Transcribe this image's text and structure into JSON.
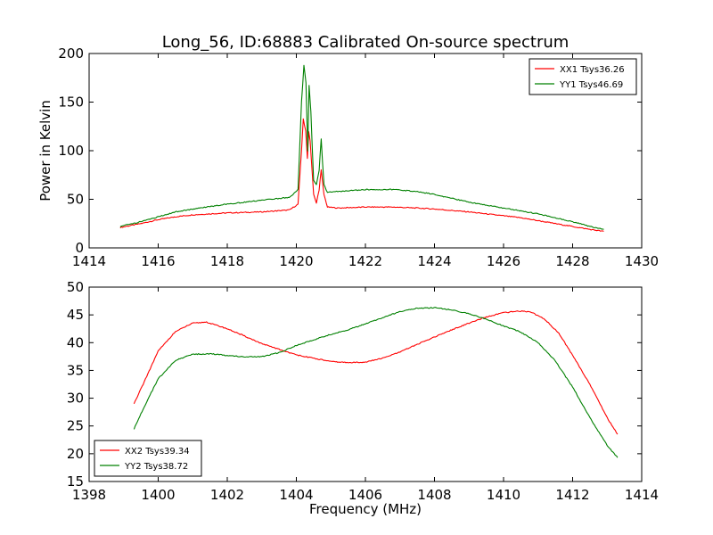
{
  "figure": {
    "title": "Long_56, ID:68883 Calibrated On-source spectrum"
  },
  "chart_data": [
    {
      "type": "line",
      "title": "Long_56, ID:68883 Calibrated On-source spectrum",
      "xlabel": "",
      "ylabel": "Power in Kelvin",
      "xlim": [
        1414,
        1430
      ],
      "ylim": [
        0,
        200
      ],
      "xticks": [
        1414,
        1416,
        1418,
        1420,
        1422,
        1424,
        1426,
        1428,
        1430
      ],
      "yticks": [
        0,
        50,
        100,
        150,
        200
      ],
      "grid": false,
      "legend_position": "top-right",
      "series": [
        {
          "name": "XX1 Tsys36.26",
          "color": "#ff0000",
          "x": [
            1414.9,
            1415.5,
            1416.0,
            1416.5,
            1417.0,
            1418.0,
            1419.0,
            1419.8,
            1420.05,
            1420.15,
            1420.2,
            1420.27,
            1420.32,
            1420.36,
            1420.4,
            1420.5,
            1420.58,
            1420.66,
            1420.72,
            1420.8,
            1420.9,
            1421.2,
            1422.0,
            1422.8,
            1423.5,
            1424.0,
            1425.0,
            1426.0,
            1426.5,
            1427.0,
            1427.5,
            1428.0,
            1428.5,
            1428.9
          ],
          "y": [
            21,
            25,
            29,
            32,
            34,
            36,
            37,
            39,
            45,
            100,
            133,
            120,
            92,
            120,
            110,
            55,
            46,
            60,
            80,
            55,
            42,
            41,
            42,
            42,
            41,
            40,
            37,
            33,
            31,
            28,
            25,
            22,
            19,
            17
          ]
        },
        {
          "name": "YY1 Tsys46.69",
          "color": "#008000",
          "x": [
            1414.9,
            1415.5,
            1416.0,
            1416.5,
            1417.0,
            1418.0,
            1419.0,
            1419.8,
            1420.05,
            1420.15,
            1420.22,
            1420.28,
            1420.33,
            1420.37,
            1420.42,
            1420.5,
            1420.58,
            1420.66,
            1420.72,
            1420.8,
            1420.9,
            1421.2,
            1422.0,
            1422.8,
            1423.5,
            1424.0,
            1425.0,
            1426.0,
            1426.5,
            1427.0,
            1427.5,
            1428.0,
            1428.5,
            1428.9
          ],
          "y": [
            22,
            27,
            32,
            37,
            40,
            45,
            49,
            52,
            60,
            150,
            188,
            170,
            100,
            167,
            140,
            70,
            65,
            80,
            112,
            65,
            57,
            58,
            60,
            60,
            58,
            55,
            47,
            41,
            38,
            35,
            31,
            27,
            22,
            19
          ]
        }
      ]
    },
    {
      "type": "line",
      "title": "",
      "xlabel": "Frequency (MHz)",
      "ylabel": "",
      "xlim": [
        1398,
        1414
      ],
      "ylim": [
        15,
        50
      ],
      "xticks": [
        1398,
        1400,
        1402,
        1404,
        1406,
        1408,
        1410,
        1412,
        1414
      ],
      "yticks": [
        15,
        20,
        25,
        30,
        35,
        40,
        45,
        50
      ],
      "grid": false,
      "legend_position": "bottom-left",
      "series": [
        {
          "name": "XX2 Tsys39.34",
          "color": "#ff0000",
          "x": [
            1399.3,
            1399.6,
            1400.0,
            1400.5,
            1401.0,
            1401.4,
            1402.0,
            1402.5,
            1403.0,
            1403.5,
            1404.0,
            1404.5,
            1405.0,
            1405.5,
            1406.0,
            1406.5,
            1407.0,
            1407.5,
            1408.0,
            1408.5,
            1409.0,
            1409.5,
            1410.0,
            1410.5,
            1410.8,
            1411.2,
            1411.6,
            1412.0,
            1412.5,
            1413.0,
            1413.3
          ],
          "y": [
            29,
            33,
            38.5,
            42,
            43.5,
            43.7,
            42.5,
            41.2,
            39.8,
            38.8,
            37.8,
            37.2,
            36.6,
            36.4,
            36.5,
            37.2,
            38.3,
            39.7,
            41.0,
            42.3,
            43.5,
            44.6,
            45.4,
            45.7,
            45.5,
            44.2,
            41.7,
            37.7,
            32.5,
            26.5,
            23.5
          ]
        },
        {
          "name": "YY2 Tsys38.72",
          "color": "#008000",
          "x": [
            1399.3,
            1399.6,
            1400.0,
            1400.5,
            1401.0,
            1401.5,
            1402.0,
            1402.5,
            1403.0,
            1403.5,
            1404.0,
            1404.5,
            1405.0,
            1405.5,
            1406.0,
            1406.5,
            1407.0,
            1407.5,
            1408.0,
            1408.5,
            1409.0,
            1409.5,
            1410.0,
            1410.5,
            1411.0,
            1411.5,
            1412.0,
            1412.5,
            1413.0,
            1413.3
          ],
          "y": [
            24.5,
            28.5,
            33.5,
            36.8,
            37.9,
            38.0,
            37.7,
            37.4,
            37.5,
            38.2,
            39.5,
            40.5,
            41.5,
            42.3,
            43.4,
            44.5,
            45.6,
            46.2,
            46.3,
            45.9,
            45.2,
            44.2,
            43.0,
            41.9,
            40.0,
            36.7,
            32.0,
            26.5,
            21.5,
            19.3
          ]
        }
      ]
    }
  ]
}
